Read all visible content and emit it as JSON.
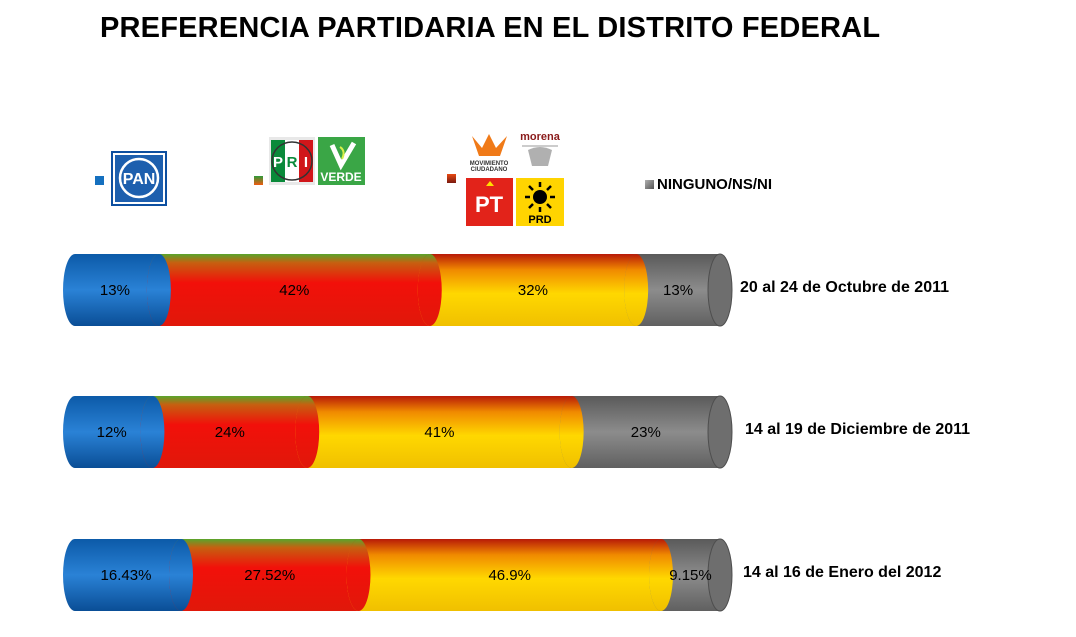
{
  "chart_data": {
    "type": "bar",
    "orientation": "horizontal",
    "stacked": true,
    "percent_stacked": true,
    "title": "PREFERENCIA PARTIDARIA EN EL DISTRITO FEDERAL",
    "categories": [
      "20 al 24 de Octubre de 2011",
      "14 al 19 de Diciembre de 2011",
      "14 al 16 de Enero del 2012"
    ],
    "series": [
      {
        "values": [
          13,
          12,
          16.43
        ],
        "labels": [
          "13%",
          "12%",
          "16.43%"
        ],
        "color": "#1570bf"
      },
      {
        "values": [
          42,
          24,
          27.52
        ],
        "labels": [
          "42%",
          "24%",
          "27.52%"
        ],
        "color": "#f01a0a"
      },
      {
        "values": [
          32,
          41,
          46.9
        ],
        "labels": [
          "32%",
          "41%",
          "46.9%"
        ],
        "color": "#f6d000"
      },
      {
        "name": "NINGUNO/NS/NI",
        "values": [
          13,
          23,
          9.15
        ],
        "labels": [
          "13%",
          "23%",
          "9.15%"
        ],
        "color": "#7d7d7d"
      }
    ],
    "legend_position": "top",
    "grid": false
  },
  "logos": {
    "pan": "PAN",
    "pri": [
      "P",
      "R",
      "I"
    ],
    "verde": "VERDE",
    "mc_line1": "MOVIMIENTO",
    "mc_line2": "CIUDADANO",
    "morena": "morena",
    "pt": "PT",
    "prd": "PRD"
  }
}
